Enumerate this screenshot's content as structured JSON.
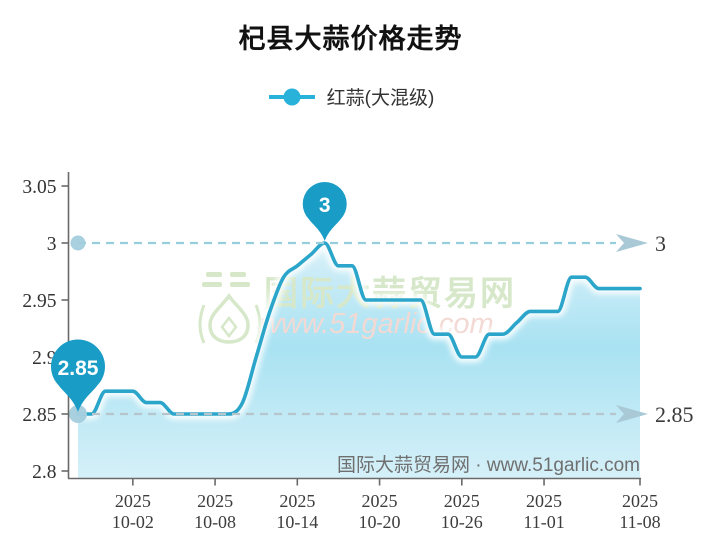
{
  "title": "杞县大蒜价格走势",
  "legend": {
    "label": "红蒜(大混级)"
  },
  "watermark": {
    "brand": "国际大蒜贸易网",
    "site": "www.51garlic.com"
  },
  "footer": {
    "credit": "国际大蒜贸易网 · www.51garlic.com"
  },
  "colors": {
    "legend_marker": "#29b2d9",
    "line": "#2ba6ca",
    "balloon": "#199cc6",
    "balloon_text": "#ffffff",
    "ref_dash_top": "#96cede",
    "ref_dash_bottom": "#b6c5cb",
    "arrow": "#a9c9d6",
    "start_dot": "#a3cedd",
    "axis": "#6a6a6a",
    "y_tick_text": "#333333",
    "x_tick_text": "#3d3d3d",
    "ref_label_text": "#3a3a3a",
    "footer_text": "#6f6f6f",
    "watermark_green": "#d6e8c9",
    "watermark_pink": "#f3d9d4",
    "area_top": "#ffffff",
    "area_mid": "#a9e2f2",
    "area_bottom": "#d5f0f8"
  },
  "chart_data": {
    "type": "area",
    "title": "杞县大蒜价格走势",
    "xlabel": "",
    "ylabel": "",
    "grid": false,
    "legend_position": "top",
    "ylim": [
      2.8,
      3.07
    ],
    "series": [
      {
        "name": "红蒜(大混级)",
        "x": [
          "09-28",
          "09-29",
          "09-30",
          "10-01",
          "10-02",
          "10-03",
          "10-04",
          "10-05",
          "10-06",
          "10-07",
          "10-08",
          "10-09",
          "10-10",
          "10-11",
          "10-12",
          "10-13",
          "10-14",
          "10-15",
          "10-16",
          "10-17",
          "10-18",
          "10-19",
          "10-20",
          "10-21",
          "10-22",
          "10-23",
          "10-24",
          "10-25",
          "10-26",
          "10-27",
          "10-28",
          "10-29",
          "10-30",
          "10-31",
          "11-01",
          "11-02",
          "11-03",
          "11-04",
          "11-05",
          "11-06",
          "11-07",
          "11-08"
        ],
        "values": [
          2.85,
          2.85,
          2.87,
          2.87,
          2.87,
          2.86,
          2.86,
          2.85,
          2.85,
          2.85,
          2.85,
          2.85,
          2.86,
          2.9,
          2.94,
          2.97,
          2.98,
          2.99,
          3.0,
          2.98,
          2.98,
          2.95,
          2.95,
          2.95,
          2.95,
          2.95,
          2.92,
          2.92,
          2.9,
          2.9,
          2.92,
          2.92,
          2.93,
          2.94,
          2.94,
          2.94,
          2.97,
          2.97,
          2.96,
          2.96,
          2.96,
          2.96
        ]
      }
    ],
    "y_ticks": [
      {
        "label": "3.05",
        "value": 3.05
      },
      {
        "label": "3",
        "value": 3.0
      },
      {
        "label": "2.95",
        "value": 2.95
      },
      {
        "label": "2.9",
        "value": 2.9
      },
      {
        "label": "2.85",
        "value": 2.85
      },
      {
        "label": "2.8",
        "value": 2.8
      }
    ],
    "x_tick_year": "2025",
    "x_tick_dates": [
      "10-02",
      "10-08",
      "10-14",
      "10-20",
      "10-26",
      "11-01",
      "11-08"
    ],
    "reference_lines": [
      {
        "value": 3.0,
        "label": "3",
        "style": "top"
      },
      {
        "value": 2.85,
        "label": "2.85",
        "style": "bottom"
      }
    ],
    "markers": [
      {
        "kind": "max",
        "date": "10-16",
        "value": 3.0,
        "label": "3"
      },
      {
        "kind": "start",
        "date": "09-28",
        "value": 2.85,
        "label": "2.85"
      }
    ]
  }
}
